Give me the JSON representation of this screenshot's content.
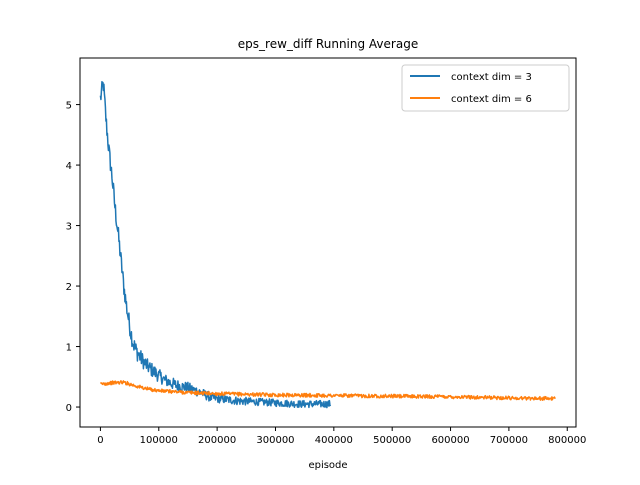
{
  "chart_data": {
    "type": "line",
    "title": "eps_rew_diff Running Average",
    "xlabel": "episode",
    "ylabel": "",
    "xlim": [
      -35000,
      815000
    ],
    "ylim": [
      -0.33,
      5.77
    ],
    "x_ticks": [
      0,
      100000,
      200000,
      300000,
      400000,
      500000,
      600000,
      700000,
      800000
    ],
    "x_tick_labels": [
      "0",
      "100000",
      "200000",
      "300000",
      "400000",
      "500000",
      "600000",
      "700000",
      "800000"
    ],
    "y_ticks": [
      0,
      1,
      2,
      3,
      4,
      5
    ],
    "y_tick_labels": [
      "0",
      "1",
      "2",
      "3",
      "4",
      "5"
    ],
    "grid": false,
    "legend_position": "top-right",
    "series": [
      {
        "name": "context dim = 3",
        "color": "#1f77b4",
        "x": [
          0,
          5000,
          10000,
          15000,
          20000,
          25000,
          30000,
          35000,
          40000,
          45000,
          50000,
          55000,
          60000,
          70000,
          80000,
          90000,
          100000,
          110000,
          120000,
          130000,
          140000,
          150000,
          160000,
          170000,
          180000,
          190000,
          200000,
          220000,
          240000,
          260000,
          280000,
          300000,
          320000,
          340000,
          360000,
          380000,
          395000
        ],
        "y": [
          5.1,
          5.35,
          4.7,
          4.2,
          3.8,
          3.3,
          2.9,
          2.45,
          2.0,
          1.65,
          1.35,
          1.1,
          0.95,
          0.8,
          0.68,
          0.6,
          0.52,
          0.45,
          0.4,
          0.36,
          0.34,
          0.32,
          0.28,
          0.25,
          0.2,
          0.16,
          0.14,
          0.12,
          0.1,
          0.09,
          0.08,
          0.07,
          0.06,
          0.05,
          0.05,
          0.05,
          0.05
        ],
        "noise": [
          0.15,
          0.15,
          0.15,
          0.15,
          0.15,
          0.15,
          0.15,
          0.15,
          0.15,
          0.15,
          0.15,
          0.15,
          0.15,
          0.13,
          0.12,
          0.12,
          0.11,
          0.1,
          0.1,
          0.1,
          0.09,
          0.09,
          0.09,
          0.08,
          0.08,
          0.08,
          0.07,
          0.07,
          0.07,
          0.06,
          0.06,
          0.06,
          0.06,
          0.06,
          0.06,
          0.06,
          0.06
        ]
      },
      {
        "name": "context dim = 6",
        "color": "#ff7f0e",
        "x": [
          0,
          20000,
          40000,
          60000,
          80000,
          100000,
          150000,
          200000,
          300000,
          400000,
          500000,
          600000,
          700000,
          780000
        ],
        "y": [
          0.38,
          0.4,
          0.41,
          0.35,
          0.3,
          0.27,
          0.24,
          0.22,
          0.2,
          0.19,
          0.18,
          0.17,
          0.15,
          0.14
        ],
        "noise": [
          0.03,
          0.03,
          0.03,
          0.03,
          0.03,
          0.03,
          0.03,
          0.03,
          0.03,
          0.03,
          0.03,
          0.03,
          0.03,
          0.03
        ]
      }
    ]
  }
}
